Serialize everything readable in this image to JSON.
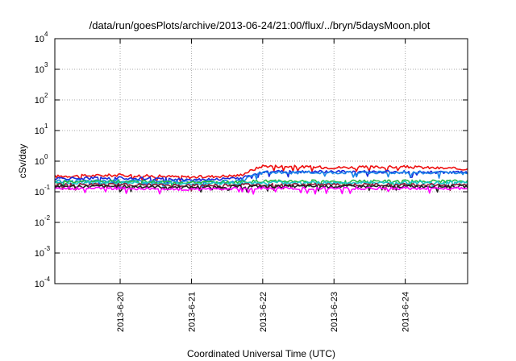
{
  "chart_data": {
    "type": "line",
    "title": "/data/run/goesPlots/archive/2013-06-24/21:00/flux/../bryn/5daysMoon.plot",
    "xlabel": "Coordinated Universal Time (UTC)",
    "ylabel": "cSv/day",
    "y_scale": "log",
    "ylim": [
      0.0001,
      10000
    ],
    "xlim": [
      "2013-06-19T02:00",
      "2013-06-24T21:00"
    ],
    "grid": true,
    "legend": "none",
    "y_ticks": [
      {
        "base": "10",
        "exp": "-4"
      },
      {
        "base": "10",
        "exp": "-3"
      },
      {
        "base": "10",
        "exp": "-2"
      },
      {
        "base": "10",
        "exp": "-1"
      },
      {
        "base": "10",
        "exp": "0"
      },
      {
        "base": "10",
        "exp": "1"
      },
      {
        "base": "10",
        "exp": "2"
      },
      {
        "base": "10",
        "exp": "3"
      },
      {
        "base": "10",
        "exp": "4"
      }
    ],
    "x_ticks": [
      "2013-6-20",
      "2013-6-21",
      "2013-6-22",
      "2013-6-23",
      "2013-6-24"
    ],
    "series": [
      {
        "color": "#ee1111",
        "x": [
          "2013-06-19T02:00",
          "2013-06-20T00:00",
          "2013-06-21T00:00",
          "2013-06-21T16:00",
          "2013-06-22T00:00",
          "2013-06-23T00:00",
          "2013-06-24T00:00",
          "2013-06-24T21:00"
        ],
        "values": [
          0.32,
          0.35,
          0.3,
          0.34,
          0.7,
          0.62,
          0.65,
          0.55
        ]
      },
      {
        "color": "#1a2ad8",
        "x": [
          "2013-06-19T02:00",
          "2013-06-20T00:00",
          "2013-06-21T00:00",
          "2013-06-21T16:00",
          "2013-06-22T00:00",
          "2013-06-23T00:00",
          "2013-06-24T00:00",
          "2013-06-24T21:00"
        ],
        "values": [
          0.27,
          0.28,
          0.25,
          0.27,
          0.45,
          0.45,
          0.45,
          0.42
        ]
      },
      {
        "color": "#1a86e8",
        "x": [
          "2013-06-19T02:00",
          "2013-06-20T00:00",
          "2013-06-21T00:00",
          "2013-06-21T16:00",
          "2013-06-22T00:00",
          "2013-06-23T00:00",
          "2013-06-24T00:00",
          "2013-06-24T21:00"
        ],
        "values": [
          0.22,
          0.23,
          0.21,
          0.22,
          0.42,
          0.43,
          0.43,
          0.4
        ]
      },
      {
        "color": "#22bb44",
        "x": [
          "2013-06-19T02:00",
          "2013-06-20T00:00",
          "2013-06-21T00:00",
          "2013-06-21T16:00",
          "2013-06-22T00:00",
          "2013-06-23T00:00",
          "2013-06-24T00:00",
          "2013-06-24T21:00"
        ],
        "values": [
          0.21,
          0.22,
          0.2,
          0.21,
          0.22,
          0.22,
          0.22,
          0.22
        ]
      },
      {
        "color": "#18c8c8",
        "x": [
          "2013-06-19T02:00",
          "2013-06-20T00:00",
          "2013-06-21T00:00",
          "2013-06-21T16:00",
          "2013-06-22T00:00",
          "2013-06-23T00:00",
          "2013-06-24T00:00",
          "2013-06-24T21:00"
        ],
        "values": [
          0.19,
          0.2,
          0.18,
          0.19,
          0.2,
          0.2,
          0.2,
          0.2
        ]
      },
      {
        "color": "#8a1a3a",
        "x": [
          "2013-06-19T02:00",
          "2013-06-20T00:00",
          "2013-06-21T00:00",
          "2013-06-21T16:00",
          "2013-06-22T00:00",
          "2013-06-23T00:00",
          "2013-06-24T00:00",
          "2013-06-24T21:00"
        ],
        "values": [
          0.17,
          0.17,
          0.16,
          0.17,
          0.17,
          0.17,
          0.17,
          0.17
        ]
      },
      {
        "color": "#222222",
        "x": [
          "2013-06-19T02:00",
          "2013-06-20T00:00",
          "2013-06-21T00:00",
          "2013-06-21T16:00",
          "2013-06-22T00:00",
          "2013-06-23T00:00",
          "2013-06-24T00:00",
          "2013-06-24T21:00"
        ],
        "values": [
          0.15,
          0.15,
          0.14,
          0.15,
          0.15,
          0.15,
          0.15,
          0.15
        ]
      },
      {
        "color": "#ff00ff",
        "x": [
          "2013-06-19T02:00",
          "2013-06-20T00:00",
          "2013-06-21T00:00",
          "2013-06-21T16:00",
          "2013-06-22T00:00",
          "2013-06-23T00:00",
          "2013-06-24T00:00",
          "2013-06-24T21:00"
        ],
        "values": [
          0.13,
          0.13,
          0.12,
          0.13,
          0.13,
          0.13,
          0.13,
          0.13
        ]
      }
    ]
  }
}
